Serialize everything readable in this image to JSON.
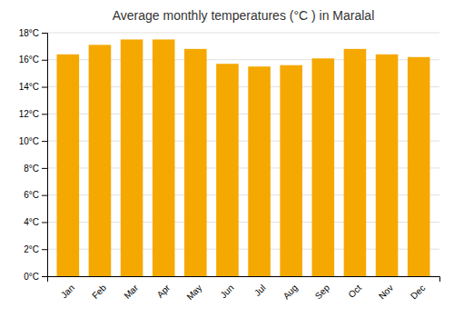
{
  "chart_data": {
    "type": "bar",
    "title": "Average monthly temperatures (°C ) in Maralal",
    "categories": [
      "Jan",
      "Feb",
      "Mar",
      "Apr",
      "May",
      "Jun",
      "Jul",
      "Aug",
      "Sep",
      "Oct",
      "Nov",
      "Dec"
    ],
    "values": [
      16.4,
      17.1,
      17.5,
      17.5,
      16.8,
      15.7,
      15.5,
      15.6,
      16.1,
      16.8,
      16.4,
      16.2
    ],
    "color": "#F5A800",
    "ylim": [
      0,
      18
    ],
    "yticks": [
      {
        "value": 0,
        "label": "0°C"
      },
      {
        "value": 2,
        "label": "2°C"
      },
      {
        "value": 4,
        "label": "4°C"
      },
      {
        "value": 6,
        "label": "6°C"
      },
      {
        "value": 8,
        "label": "8°C"
      },
      {
        "value": 10,
        "label": "10°C"
      },
      {
        "value": 12,
        "label": "12°C"
      },
      {
        "value": 14,
        "label": "14°C"
      },
      {
        "value": 16,
        "label": "16°C"
      },
      {
        "value": 18,
        "label": "18°C"
      }
    ],
    "grid": true
  }
}
